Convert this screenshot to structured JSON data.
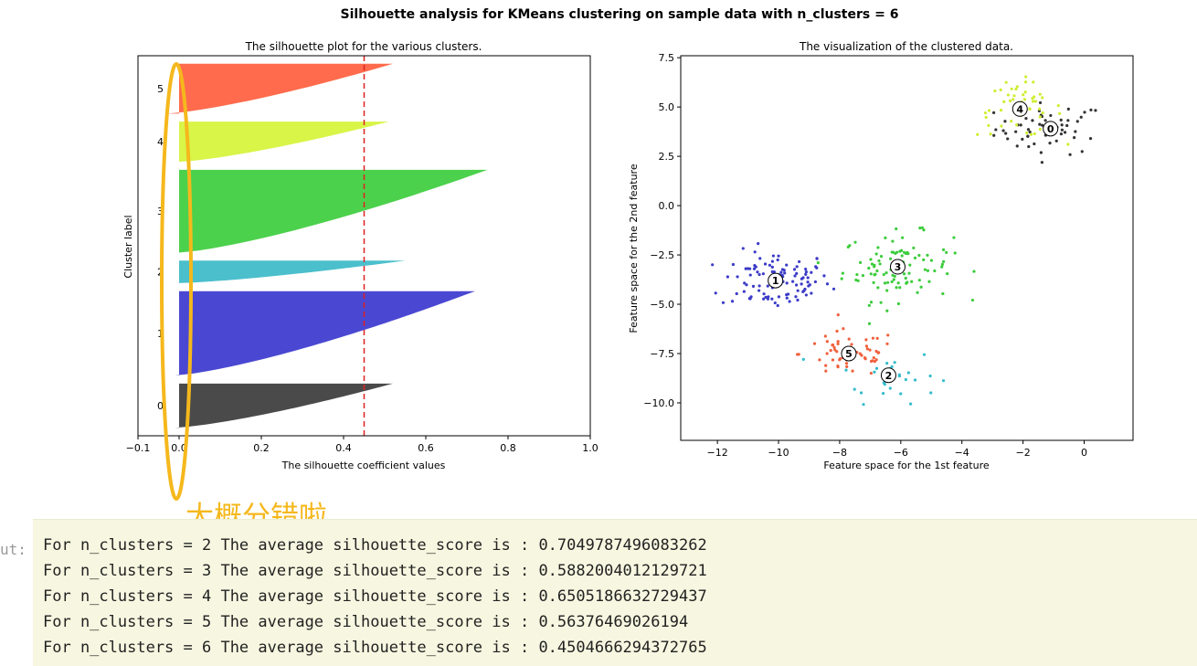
{
  "figure": {
    "suptitle": "Silhouette analysis for KMeans clustering on sample data with n_clusters = 6"
  },
  "annotation": {
    "text": "大概分错啦",
    "color": "#f5b81c"
  },
  "output": {
    "prompt": "ut:",
    "lines": [
      "For n_clusters = 2 The average silhouette_score is : 0.7049787496083262",
      "For n_clusters = 3 The average silhouette_score is : 0.5882004012129721",
      "For n_clusters = 4 The average silhouette_score is : 0.6505186632729437",
      "For n_clusters = 5 The average silhouette_score is : 0.56376469026194",
      "For n_clusters = 6 The average silhouette_score is : 0.4504666294372765"
    ]
  },
  "chart_data": [
    {
      "type": "area",
      "title": "The silhouette plot for the various clusters.",
      "xlabel": "The silhouette coefficient values",
      "ylabel": "Cluster label",
      "xlim": [
        -0.1,
        1.0
      ],
      "xticks": [
        "−0.1",
        "0.0",
        "0.2",
        "0.4",
        "0.6",
        "0.8",
        "1.0"
      ],
      "average_silhouette_score": 0.45,
      "clusters": [
        {
          "label": "0",
          "color": "#4a4a4a",
          "min": -0.01,
          "max": 0.52,
          "size": 55
        },
        {
          "label": "1",
          "color": "#4a48d2",
          "min": -0.01,
          "max": 0.72,
          "size": 105
        },
        {
          "label": "2",
          "color": "#4bbfcc",
          "min": 0.0,
          "max": 0.55,
          "size": 28
        },
        {
          "label": "3",
          "color": "#4cd14c",
          "min": 0.0,
          "max": 0.75,
          "size": 103
        },
        {
          "label": "4",
          "color": "#d8f548",
          "min": 0.0,
          "max": 0.51,
          "size": 50
        },
        {
          "label": "5",
          "color": "#ff6b4c",
          "min": -0.03,
          "max": 0.52,
          "size": 62
        }
      ]
    },
    {
      "type": "scatter",
      "title": "The visualization of the clustered data.",
      "xlabel": "Feature space for the 1st feature",
      "ylabel": "Feature space for the 2nd feature",
      "xlim": [
        -13.2,
        1.6
      ],
      "ylim": [
        -11.9,
        7.6
      ],
      "xticks": [
        "−12",
        "−10",
        "−8",
        "−6",
        "−4",
        "−2",
        "0"
      ],
      "yticks": [
        "7.5",
        "5.0",
        "2.5",
        "0.0",
        "−2.5",
        "−5.0",
        "−7.5",
        "−10.0"
      ],
      "clusters": [
        {
          "label": "0",
          "color": "#333333",
          "center": [
            -1.1,
            3.9
          ],
          "spread": [
            0.9,
            0.65
          ],
          "n": 55
        },
        {
          "label": "1",
          "color": "#3b3bc8",
          "center": [
            -10.1,
            -3.8
          ],
          "spread": [
            0.9,
            0.75
          ],
          "n": 105
        },
        {
          "label": "2",
          "color": "#33bccc",
          "center": [
            -6.4,
            -8.6
          ],
          "spread": [
            0.8,
            0.7
          ],
          "n": 28
        },
        {
          "label": "3",
          "color": "#3ccc3c",
          "center": [
            -6.1,
            -3.1
          ],
          "spread": [
            0.9,
            0.85
          ],
          "n": 103
        },
        {
          "label": "4",
          "color": "#cfee33",
          "center": [
            -2.1,
            4.9
          ],
          "spread": [
            0.7,
            0.7
          ],
          "n": 50
        },
        {
          "label": "5",
          "color": "#f0603c",
          "center": [
            -7.7,
            -7.5
          ],
          "spread": [
            0.8,
            0.6
          ],
          "n": 62
        }
      ]
    }
  ]
}
